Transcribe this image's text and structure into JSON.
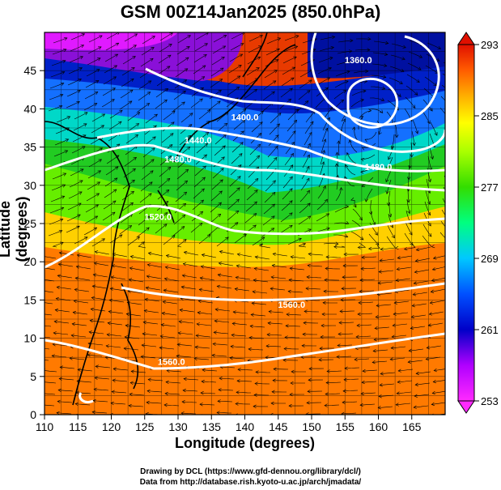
{
  "title": "GSM 00Z14Jan2025 (850.0hPa)",
  "xlabel": "Longitude (degrees)",
  "ylabel": "Latitude  (degrees)",
  "credit_1": "Drawing by DCL (https://www.gfd-dennou.org/library/dcl/)",
  "credit_2": "Data from http://database.rish.kyoto-u.ac.jp/arch/jmadata/",
  "map": {
    "projection": "equirectangular",
    "lon_range": [
      110,
      170
    ],
    "lat_range": [
      0,
      50
    ],
    "lon_ticks": [
      110,
      115,
      120,
      125,
      130,
      135,
      140,
      145,
      150,
      155,
      160,
      165
    ],
    "lat_ticks": [
      0,
      5,
      10,
      15,
      20,
      25,
      30,
      35,
      40,
      45
    ],
    "grid_lines": true,
    "field_shaded": "temperature (K)",
    "overlays": [
      "geopotential height contours",
      "wind streamlines",
      "coastlines"
    ]
  },
  "contour_labels": [
    {
      "text": "1360.0",
      "lon": 157,
      "lat": 46
    },
    {
      "text": "1400.0",
      "lon": 140,
      "lat": 38.5
    },
    {
      "text": "1440.0",
      "lon": 133,
      "lat": 35.5
    },
    {
      "text": "1480.0",
      "lon": 130,
      "lat": 33
    },
    {
      "text": "1480.0",
      "lon": 160,
      "lat": 32
    },
    {
      "text": "1520.0",
      "lon": 127,
      "lat": 25.5
    },
    {
      "text": "1560.0",
      "lon": 147,
      "lat": 14
    },
    {
      "text": "1560.0",
      "lon": 129,
      "lat": 6.5
    }
  ],
  "colorbar": {
    "ticks": [
      "293",
      "285",
      "277",
      "269",
      "261",
      "253"
    ],
    "min": 253,
    "max": 293,
    "colors": [
      "#ff2aff",
      "#b000ff",
      "#0000c8",
      "#0050ff",
      "#00c8ff",
      "#00ff80",
      "#33dd00",
      "#aaff00",
      "#ffff00",
      "#ffaa00",
      "#ff5a00",
      "#e01000"
    ]
  }
}
